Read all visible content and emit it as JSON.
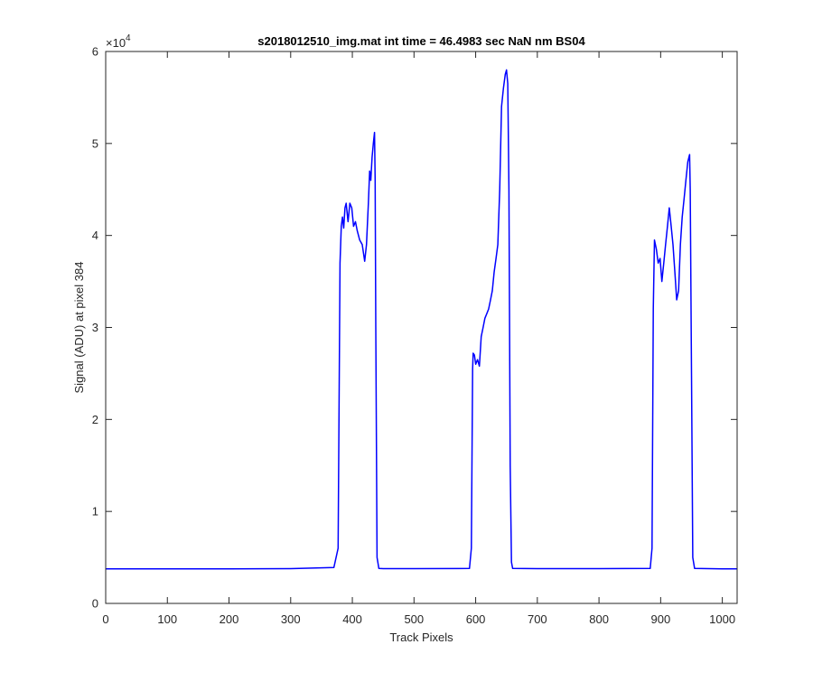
{
  "chart_data": {
    "type": "line",
    "title": "s2018012510_img.mat int time = 46.4983 sec  NaN nm BS04",
    "xlabel": "Track Pixels",
    "ylabel": "Signal (ADU) at pixel 384",
    "y_exponent_base": "×10",
    "y_exponent_power": "4",
    "xlim": [
      0,
      1024
    ],
    "ylim": [
      0,
      6
    ],
    "x_ticks": [
      0,
      100,
      200,
      300,
      400,
      500,
      600,
      700,
      800,
      900,
      1000
    ],
    "x_tick_labels": [
      "0",
      "100",
      "200",
      "300",
      "400",
      "500",
      "600",
      "700",
      "800",
      "900",
      "1000"
    ],
    "y_ticks": [
      0,
      1,
      2,
      3,
      4,
      5,
      6
    ],
    "y_tick_labels": [
      "0",
      "1",
      "2",
      "3",
      "4",
      "5",
      "6"
    ],
    "grid": false,
    "line_color": "#0000ff",
    "series": [
      {
        "x": [
          0,
          100,
          200,
          300,
          370,
          377,
          380,
          382,
          384,
          386,
          388,
          390,
          393,
          396,
          399,
          402,
          405,
          408,
          412,
          416,
          420,
          423,
          426,
          428,
          430,
          432,
          434,
          436,
          437,
          438,
          440,
          443,
          450,
          500,
          590,
          593,
          595,
          596,
          598,
          600,
          603,
          606,
          609,
          612,
          615,
          618,
          621,
          624,
          627,
          630,
          633,
          636,
          639,
          642,
          645,
          648,
          650,
          652,
          654,
          656,
          658,
          660,
          700,
          800,
          883,
          886,
          888,
          890,
          893,
          896,
          899,
          902,
          905,
          908,
          911,
          914,
          917,
          920,
          923,
          926,
          929,
          932,
          935,
          938,
          941,
          944,
          947,
          948,
          950,
          952,
          955,
          1000,
          1024
        ],
        "y": [
          0.375,
          0.375,
          0.375,
          0.378,
          0.39,
          0.6,
          3.7,
          4.1,
          4.2,
          4.08,
          4.3,
          4.35,
          4.15,
          4.35,
          4.3,
          4.1,
          4.15,
          4.05,
          3.95,
          3.9,
          3.72,
          3.9,
          4.35,
          4.7,
          4.6,
          4.85,
          5.0,
          5.12,
          4.6,
          3.0,
          0.5,
          0.38,
          0.378,
          0.378,
          0.38,
          0.6,
          2.55,
          2.72,
          2.7,
          2.6,
          2.65,
          2.58,
          2.9,
          3.0,
          3.1,
          3.15,
          3.2,
          3.3,
          3.4,
          3.6,
          3.75,
          3.9,
          4.5,
          5.4,
          5.6,
          5.75,
          5.8,
          5.65,
          4.5,
          1.5,
          0.45,
          0.38,
          0.378,
          0.378,
          0.38,
          0.6,
          3.2,
          3.95,
          3.85,
          3.7,
          3.75,
          3.5,
          3.7,
          3.9,
          4.1,
          4.3,
          4.1,
          3.9,
          3.6,
          3.3,
          3.4,
          3.9,
          4.2,
          4.4,
          4.6,
          4.8,
          4.88,
          4.5,
          2.5,
          0.5,
          0.38,
          0.375,
          0.375
        ]
      }
    ]
  }
}
